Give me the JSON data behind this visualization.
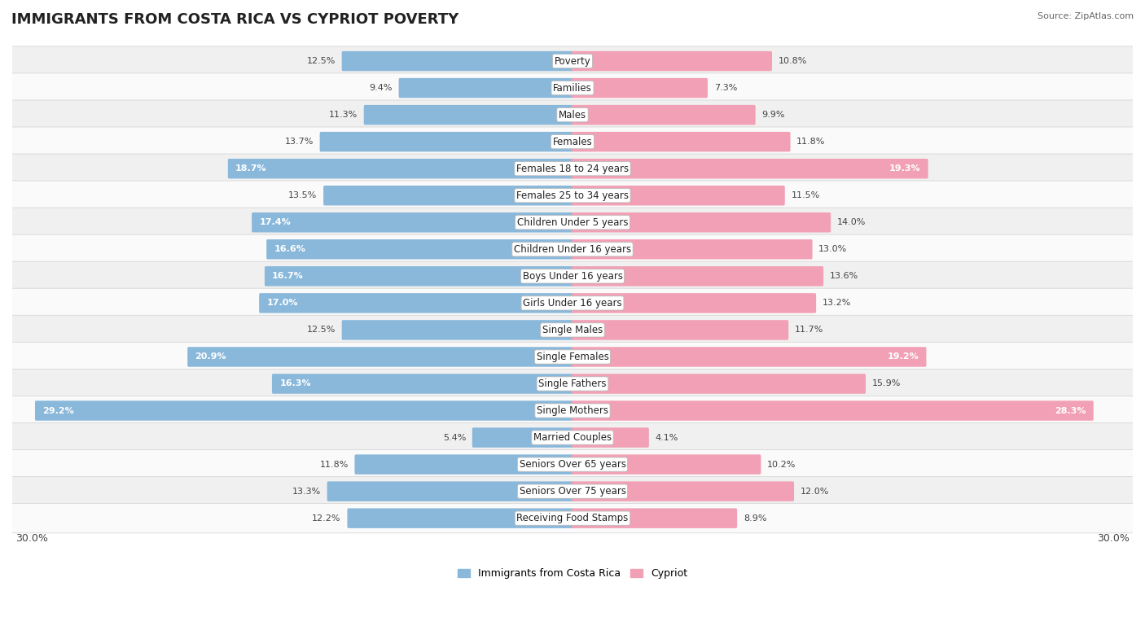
{
  "title": "IMMIGRANTS FROM COSTA RICA VS CYPRIOT POVERTY",
  "source": "Source: ZipAtlas.com",
  "categories": [
    "Poverty",
    "Families",
    "Males",
    "Females",
    "Females 18 to 24 years",
    "Females 25 to 34 years",
    "Children Under 5 years",
    "Children Under 16 years",
    "Boys Under 16 years",
    "Girls Under 16 years",
    "Single Males",
    "Single Females",
    "Single Fathers",
    "Single Mothers",
    "Married Couples",
    "Seniors Over 65 years",
    "Seniors Over 75 years",
    "Receiving Food Stamps"
  ],
  "left_values": [
    12.5,
    9.4,
    11.3,
    13.7,
    18.7,
    13.5,
    17.4,
    16.6,
    16.7,
    17.0,
    12.5,
    20.9,
    16.3,
    29.2,
    5.4,
    11.8,
    13.3,
    12.2
  ],
  "right_values": [
    10.8,
    7.3,
    9.9,
    11.8,
    19.3,
    11.5,
    14.0,
    13.0,
    13.6,
    13.2,
    11.7,
    19.2,
    15.9,
    28.3,
    4.1,
    10.2,
    12.0,
    8.9
  ],
  "left_color": "#89b8db",
  "right_color": "#f2a0b5",
  "row_bg_even": "#f0f0f0",
  "row_bg_odd": "#fafafa",
  "max_value": 30.0,
  "legend_left": "Immigrants from Costa Rica",
  "legend_right": "Cypriot",
  "title_fontsize": 13,
  "cat_label_fontsize": 8.5,
  "value_fontsize": 8.0,
  "white_text_threshold": 16.0
}
